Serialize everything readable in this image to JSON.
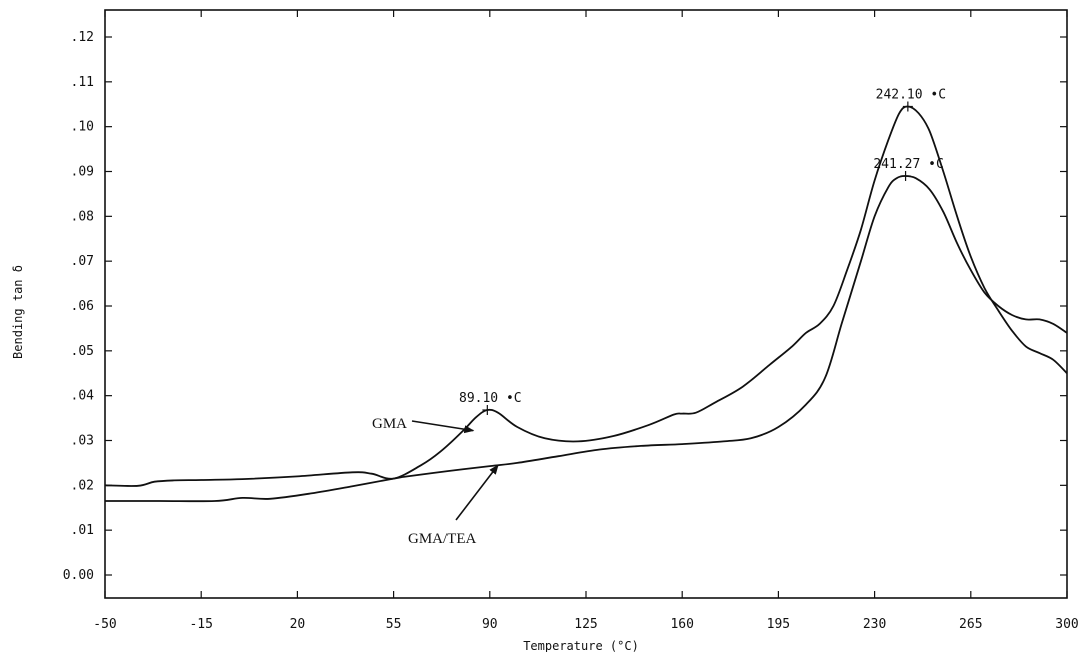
{
  "chart_data": {
    "type": "line",
    "xlabel": "Temperature (°C)",
    "ylabel": "Bending tan δ",
    "xlim": [
      -50,
      300
    ],
    "ylim": [
      -0.005,
      0.125
    ],
    "x_ticks": [
      -50,
      -15,
      20,
      55,
      90,
      125,
      160,
      195,
      230,
      265,
      300
    ],
    "x_tick_labels": [
      "-50",
      "-15",
      "20",
      "55",
      "90",
      "125",
      "160",
      "195",
      "230",
      "265",
      "300"
    ],
    "y_ticks": [
      0.0,
      0.01,
      0.02,
      0.03,
      0.04,
      0.05,
      0.06,
      0.07,
      0.08,
      0.09,
      0.1,
      0.11,
      0.12
    ],
    "y_tick_labels": [
      "0.00",
      ".01",
      ".02",
      ".03",
      ".04",
      ".05",
      ".06",
      ".07",
      ".08",
      ".09",
      ".10",
      ".11",
      ".12"
    ],
    "grid": false,
    "series": [
      {
        "name": "GMA",
        "color": "#111111",
        "x": [
          -50,
          -38,
          -32,
          -25,
          -15,
          0,
          20,
          40,
          47,
          55,
          65,
          72,
          80,
          85,
          89,
          93,
          100,
          110,
          122,
          135,
          148,
          157,
          160,
          165,
          172,
          182,
          192,
          200,
          205,
          210,
          215,
          220,
          225,
          230,
          235,
          239,
          242,
          246,
          250,
          255,
          260,
          265,
          270,
          275,
          280,
          285,
          290,
          295,
          300
        ],
        "y": [
          0.02,
          0.0199,
          0.0208,
          0.0211,
          0.0212,
          0.0214,
          0.022,
          0.0229,
          0.0226,
          0.0215,
          0.0245,
          0.0275,
          0.032,
          0.0352,
          0.0368,
          0.0362,
          0.033,
          0.0305,
          0.0298,
          0.031,
          0.0335,
          0.0358,
          0.036,
          0.0362,
          0.0385,
          0.042,
          0.047,
          0.051,
          0.054,
          0.056,
          0.06,
          0.068,
          0.077,
          0.088,
          0.097,
          0.103,
          0.1045,
          0.103,
          0.099,
          0.09,
          0.08,
          0.071,
          0.064,
          0.059,
          0.0545,
          0.051,
          0.0495,
          0.048,
          0.045
        ]
      },
      {
        "name": "GMA/TEA",
        "color": "#111111",
        "x": [
          -50,
          -30,
          -10,
          0,
          10,
          25,
          40,
          55,
          60,
          75,
          90,
          100,
          115,
          130,
          145,
          160,
          175,
          185,
          195,
          205,
          212,
          218,
          225,
          230,
          235,
          238,
          241,
          245,
          250,
          255,
          260,
          265,
          270,
          275,
          280,
          285,
          290,
          295,
          300
        ],
        "y": [
          0.0165,
          0.0165,
          0.0165,
          0.0172,
          0.017,
          0.0182,
          0.0198,
          0.0215,
          0.022,
          0.0232,
          0.0243,
          0.025,
          0.0265,
          0.028,
          0.0288,
          0.0292,
          0.0298,
          0.0305,
          0.033,
          0.038,
          0.044,
          0.056,
          0.07,
          0.08,
          0.0865,
          0.0885,
          0.089,
          0.0885,
          0.086,
          0.081,
          0.074,
          0.068,
          0.063,
          0.06,
          0.058,
          0.057,
          0.057,
          0.056,
          0.054
        ]
      }
    ],
    "peak_labels": [
      {
        "text": "89.10 •C",
        "x": 89.1,
        "y": 0.0368
      },
      {
        "text": "242.10 •C",
        "x": 242.1,
        "y": 0.1045
      },
      {
        "text": "241.27 •C",
        "x": 241.27,
        "y": 0.089
      }
    ],
    "annotations": [
      {
        "text": "GMA",
        "arrow_to_x": 84,
        "arrow_to_y": 0.0322
      },
      {
        "text": "GMA/TEA",
        "arrow_to_x": 93,
        "arrow_to_y": 0.0245
      }
    ]
  }
}
